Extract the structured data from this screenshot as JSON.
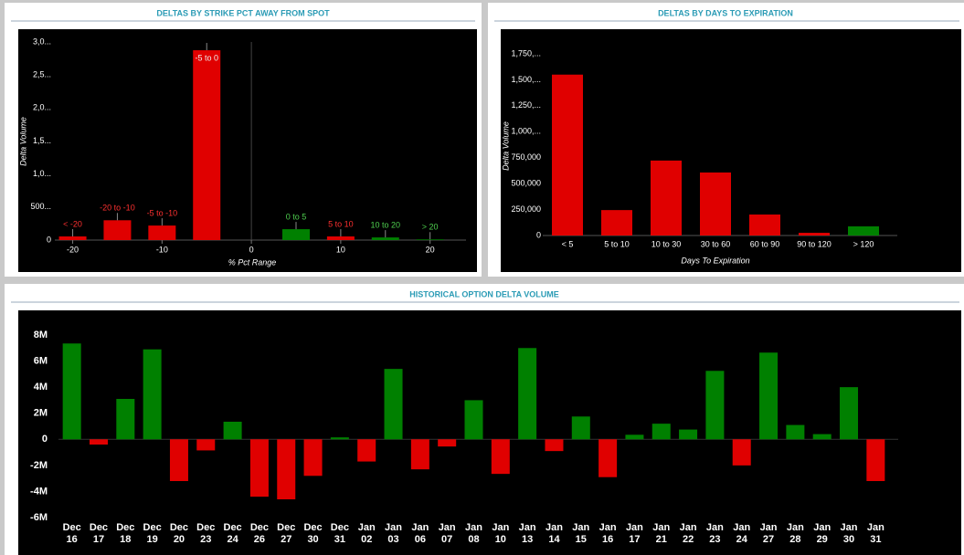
{
  "chart_data": [
    {
      "type": "bar",
      "title": "DELTAS BY STRIKE PCT AWAY FROM SPOT",
      "x": [
        -20,
        -15,
        -10,
        -5,
        5,
        10,
        15,
        20
      ],
      "bar_labels": [
        "< -20",
        "-20 to -10",
        "-5 to -10",
        "-5 to 0",
        "0 to 5",
        "5 to 10",
        "10 to 20",
        "> 20"
      ],
      "values": [
        55,
        300,
        220,
        2875,
        165,
        55,
        40,
        10
      ],
      "colors": [
        "#e00000",
        "#e00000",
        "#e00000",
        "#e00000",
        "#008000",
        "#e00000",
        "#008000",
        "#008000"
      ],
      "xlabel": "% Pct Range",
      "ylabel": "Delta Volume",
      "xlim": [
        -22,
        23
      ],
      "xticks": [
        -20,
        -10,
        0,
        10,
        20
      ],
      "ylim": [
        0,
        3000
      ],
      "yticks": [
        0,
        {
          "value": 500,
          "label": "500..."
        },
        {
          "value": 1000,
          "label": "1,0..."
        },
        {
          "value": 1500,
          "label": "1,5..."
        },
        {
          "value": 2000,
          "label": "2,0..."
        },
        {
          "value": 2500,
          "label": "2,5..."
        },
        {
          "value": 3000,
          "label": "3,0..."
        }
      ]
    },
    {
      "type": "bar",
      "title": "DELTAS BY DAYS TO EXPIRATION",
      "categories": [
        "< 5",
        "5 to 10",
        "10 to 30",
        "30 to 60",
        "60 to 90",
        "90 to 120",
        "> 120"
      ],
      "values": [
        1550000,
        245000,
        722000,
        607000,
        202000,
        26000,
        88000
      ],
      "colors": [
        "#e00000",
        "#e00000",
        "#e00000",
        "#e00000",
        "#e00000",
        "#e00000",
        "#008000"
      ],
      "xlabel": "Days To Expiration",
      "ylabel": "Delta Volume",
      "ylim": [
        0,
        1750000
      ],
      "yticks": [
        0,
        {
          "value": 250000,
          "label": "250,000"
        },
        {
          "value": 500000,
          "label": "500,000"
        },
        {
          "value": 750000,
          "label": "750,000"
        },
        {
          "value": 1000000,
          "label": "1,000,..."
        },
        {
          "value": 1250000,
          "label": "1,250,..."
        },
        {
          "value": 1500000,
          "label": "1,500,..."
        },
        {
          "value": 1750000,
          "label": "1,750,..."
        }
      ]
    },
    {
      "type": "bar",
      "title": "HISTORICAL OPTION DELTA VOLUME",
      "categories": [
        "Dec 16",
        "Dec 17",
        "Dec 18",
        "Dec 19",
        "Dec 20",
        "Dec 23",
        "Dec 24",
        "Dec 26",
        "Dec 27",
        "Dec 30",
        "Dec 31",
        "Jan 02",
        "Jan 03",
        "Jan 06",
        "Jan 07",
        "Jan 08",
        "Jan 10",
        "Jan 13",
        "Jan 14",
        "Jan 15",
        "Jan 16",
        "Jan 17",
        "Jan 21",
        "Jan 22",
        "Jan 23",
        "Jan 24",
        "Jan 27",
        "Jan 28",
        "Jan 29",
        "Jan 30",
        "Jan 31"
      ],
      "values": [
        7.35,
        -0.4,
        3.1,
        6.9,
        -3.2,
        -0.85,
        1.35,
        -4.4,
        -4.6,
        -2.8,
        0.15,
        -1.7,
        5.4,
        -2.3,
        -0.55,
        3.0,
        -2.65,
        7.0,
        -0.9,
        1.75,
        -2.9,
        0.35,
        1.2,
        0.75,
        5.25,
        -2.0,
        6.65,
        1.1,
        0.4,
        4.0,
        -3.2
      ],
      "positive_color": "#008000",
      "negative_color": "#e00000",
      "ylim": [
        -6,
        8
      ],
      "yticks": [
        {
          "value": -6,
          "label": "-6M"
        },
        {
          "value": -4,
          "label": "-4M"
        },
        {
          "value": -2,
          "label": "-2M"
        },
        0,
        {
          "value": 2,
          "label": "2M"
        },
        {
          "value": 4,
          "label": "4M"
        },
        {
          "value": 6,
          "label": "6M"
        },
        {
          "value": 8,
          "label": "8M"
        }
      ]
    }
  ]
}
